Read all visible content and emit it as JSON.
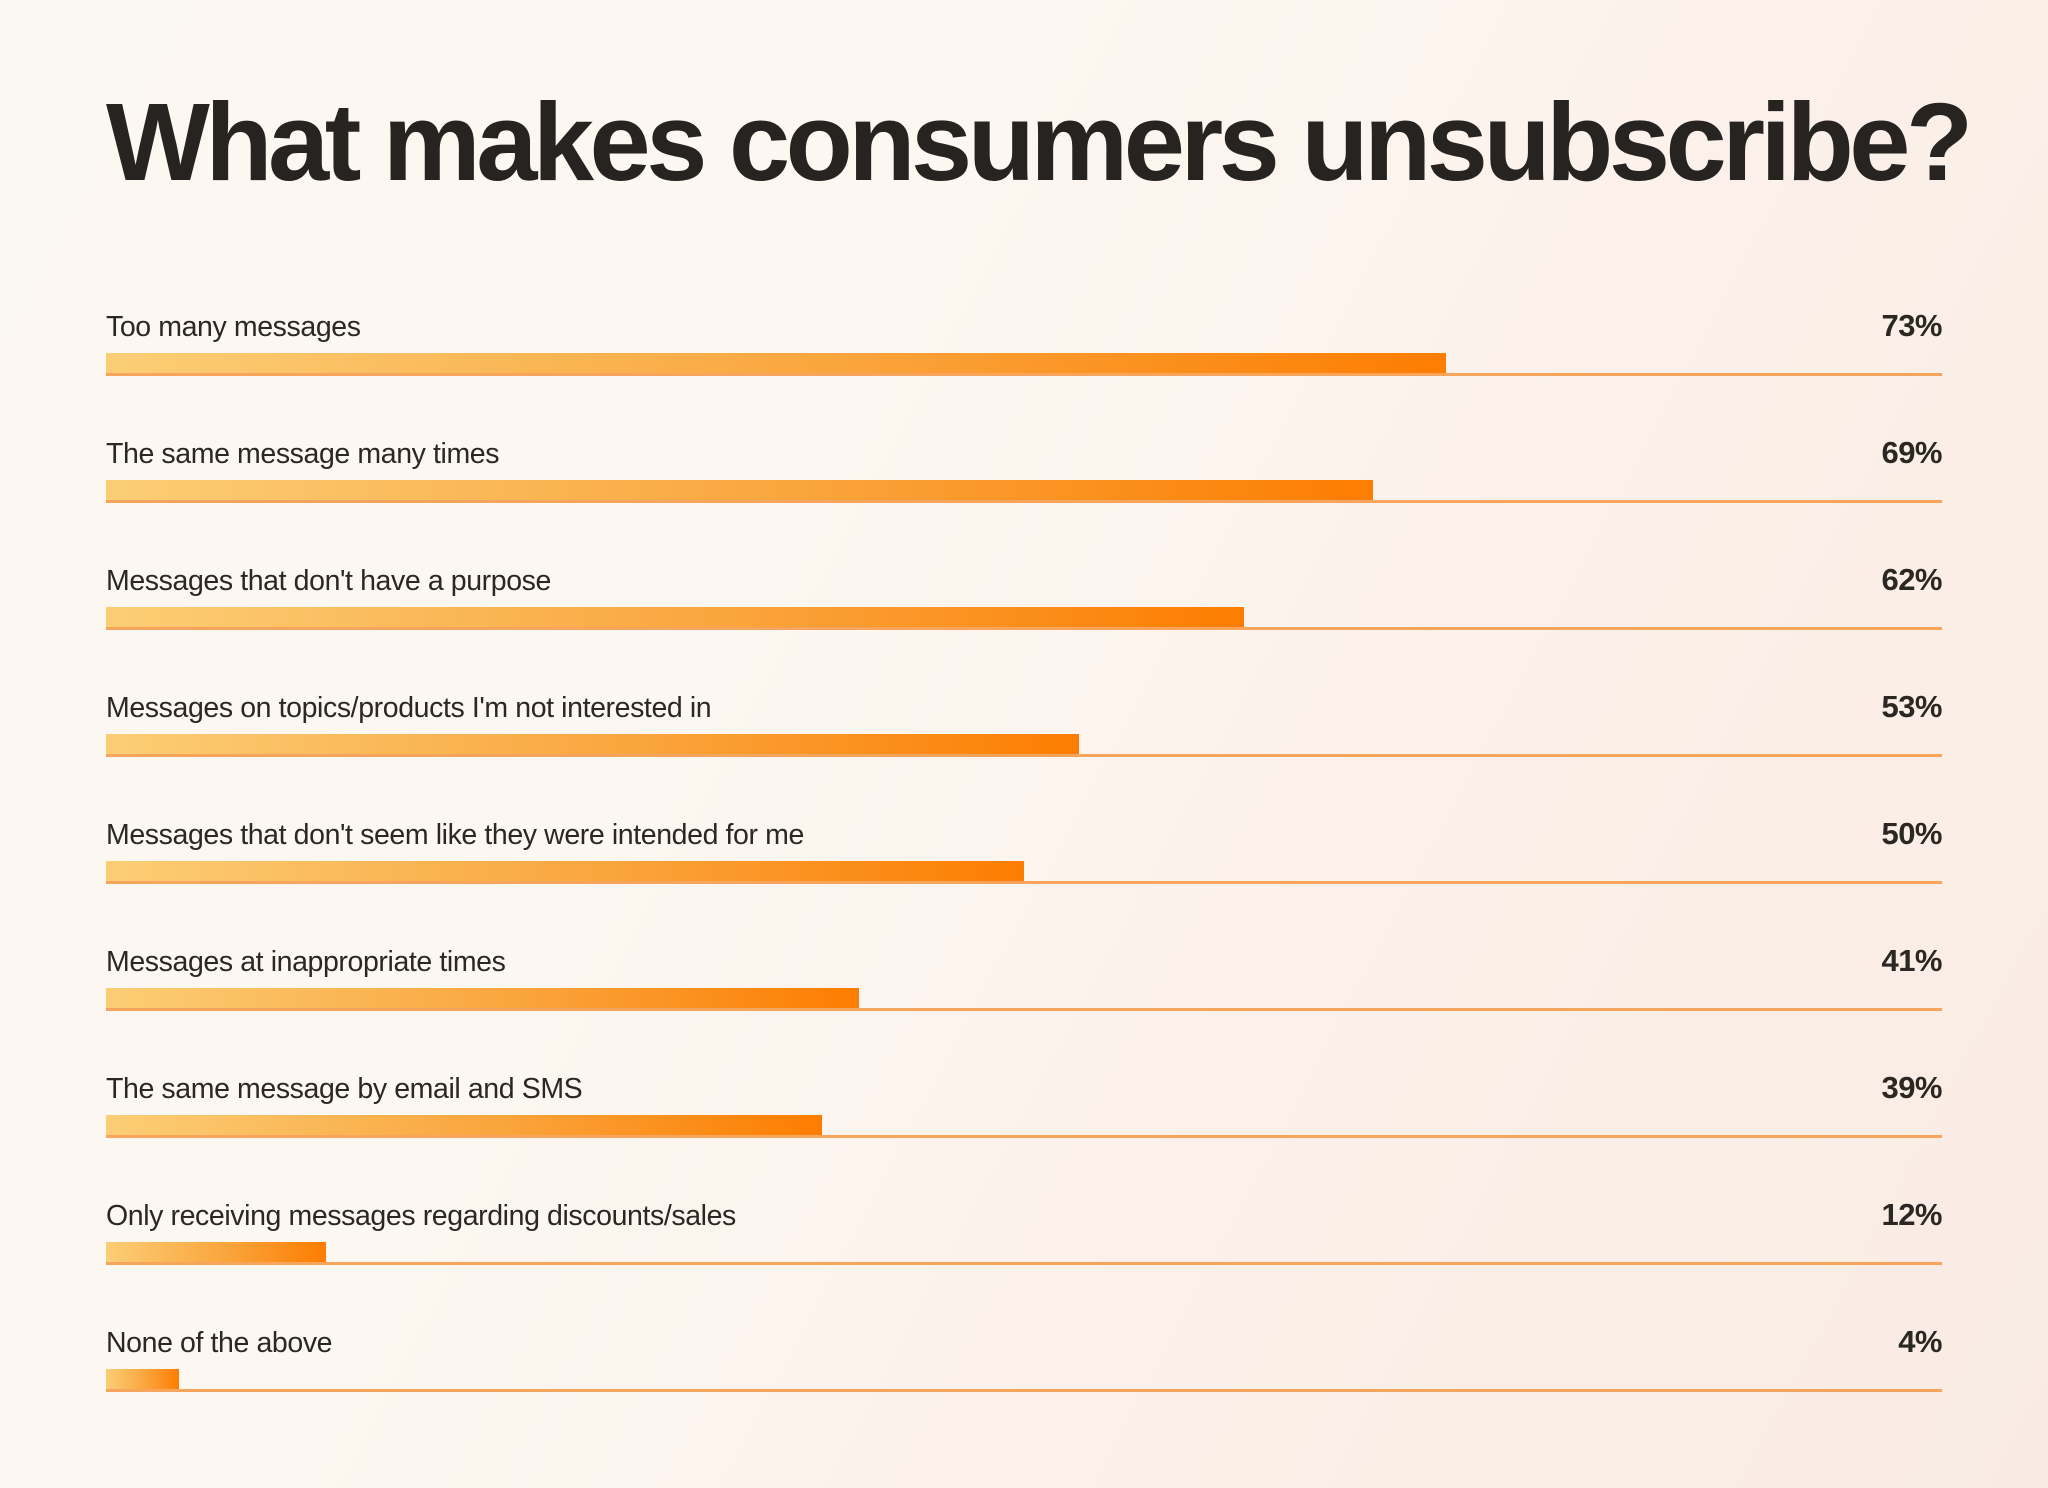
{
  "title": "What makes consumers unsubscribe?",
  "chart_data": {
    "type": "bar",
    "orientation": "horizontal",
    "title": "What makes consumers unsubscribe?",
    "unit": "%",
    "xlim": [
      0,
      100
    ],
    "grid": false,
    "value_label_position": "right-aligned",
    "categories": [
      "Too many messages",
      "The same message many times",
      "Messages that don't have a purpose",
      "Messages on topics/products I'm not interested in",
      "Messages that don't seem like they were intended for me",
      "Messages at inappropriate times",
      "The same message by email and SMS",
      "Only receiving messages regarding discounts/sales",
      "None of the above"
    ],
    "values": [
      73,
      69,
      62,
      53,
      50,
      41,
      39,
      12,
      4
    ],
    "colors": {
      "bar_gradient_start": "#FBCE76",
      "bar_gradient_mid": "#FAA53D",
      "bar_gradient_end": "#FC7D01",
      "baseline_rule": "#F7A55C",
      "text": "#272420",
      "background_start": "#FBF8F1",
      "background_end": "#F9EBE2"
    }
  },
  "rows": [
    {
      "label": "Too many messages",
      "value": 73,
      "value_label": "73%"
    },
    {
      "label": "The same message many times",
      "value": 69,
      "value_label": "69%"
    },
    {
      "label": "Messages that don't have a purpose",
      "value": 62,
      "value_label": "62%"
    },
    {
      "label": "Messages on topics/products I'm not interested in",
      "value": 53,
      "value_label": "53%"
    },
    {
      "label": "Messages that don't seem like they were intended for me",
      "value": 50,
      "value_label": "50%"
    },
    {
      "label": "Messages at inappropriate times",
      "value": 41,
      "value_label": "41%"
    },
    {
      "label": "The same message by email and SMS",
      "value": 39,
      "value_label": "39%"
    },
    {
      "label": "Only receiving messages regarding discounts/sales",
      "value": 12,
      "value_label": "12%"
    },
    {
      "label": "None of the above",
      "value": 4,
      "value_label": "4%"
    }
  ]
}
